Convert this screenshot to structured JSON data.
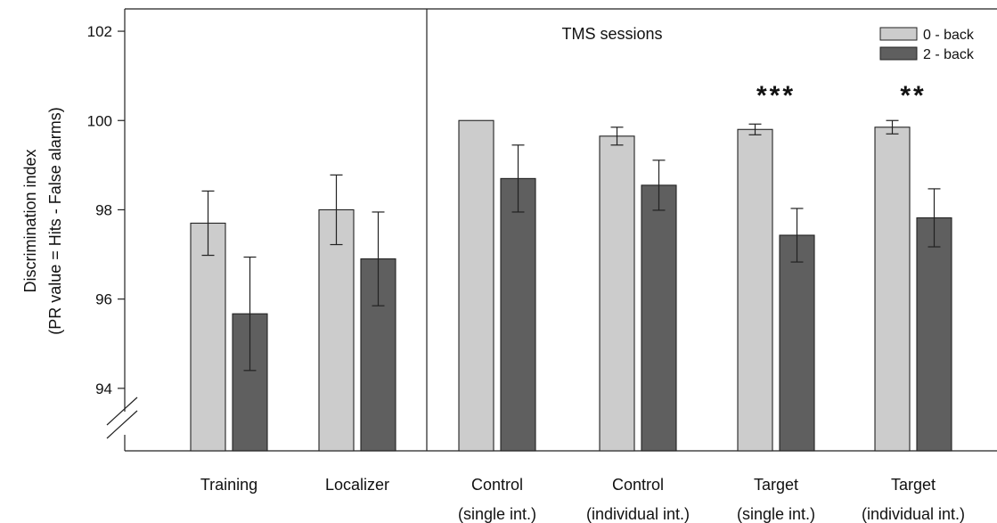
{
  "chart_data": {
    "type": "bar",
    "ylabel_lines": [
      "Discrimination index",
      "(PR value = Hits - False alarms)"
    ],
    "xlabel": "",
    "ylim": [
      92.6,
      102.5
    ],
    "yticks": [
      94,
      96,
      98,
      100,
      102
    ],
    "axis_break": true,
    "categories": [
      {
        "line1": "Training",
        "line2": ""
      },
      {
        "line1": "Localizer",
        "line2": ""
      },
      {
        "line1": "Control",
        "line2": "(single int.)"
      },
      {
        "line1": "Control",
        "line2": "(individual int.)"
      },
      {
        "line1": "Target",
        "line2": "(single int.)"
      },
      {
        "line1": "Target",
        "line2": "(individual int.)"
      }
    ],
    "series": [
      {
        "name": "0 - back",
        "color": "#cccccc",
        "values": [
          97.7,
          98.0,
          100.0,
          99.65,
          99.8,
          99.85
        ],
        "errors": [
          0.72,
          0.78,
          0.0,
          0.2,
          0.12,
          0.15
        ]
      },
      {
        "name": "2 - back",
        "color": "#5f5f5f",
        "values": [
          95.67,
          96.9,
          98.7,
          98.55,
          97.43,
          97.82
        ],
        "errors": [
          1.27,
          1.05,
          0.75,
          0.56,
          0.6,
          0.65
        ]
      }
    ],
    "session_label": "TMS sessions",
    "divider_after_category": 1,
    "significance": [
      {
        "category": 4,
        "label": "***"
      },
      {
        "category": 5,
        "label": "**"
      }
    ],
    "legend_position": "top-right",
    "grid": false
  }
}
